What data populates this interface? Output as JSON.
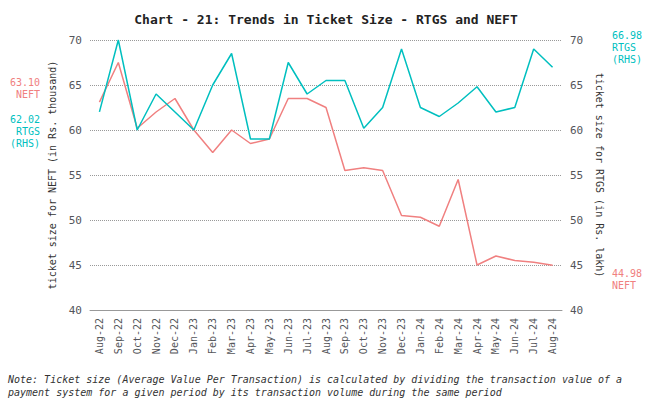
{
  "chart_data": {
    "type": "line",
    "title": "Chart - 21: Trends in Ticket Size - RTGS and NEFT",
    "categories": [
      "Aug-22",
      "Sep-22",
      "Oct-22",
      "Nov-22",
      "Dec-22",
      "Jan-23",
      "Feb-23",
      "Mar-23",
      "Apr-23",
      "May-23",
      "Jun-23",
      "Jul-23",
      "Aug-23",
      "Sep-23",
      "Oct-23",
      "Nov-23",
      "Dec-23",
      "Jan-24",
      "Feb-24",
      "Mar-24",
      "Apr-24",
      "May-24",
      "Jun-24",
      "Jul-24",
      "Aug-24"
    ],
    "series": [
      {
        "color": "#F08080",
        "values": [
          63.1,
          67.5,
          60.2,
          62.0,
          63.5,
          60.0,
          57.5,
          60.0,
          58.5,
          59.0,
          63.5,
          63.5,
          62.5,
          55.5,
          55.8,
          55.5,
          50.5,
          50.3,
          49.3,
          54.5,
          45.0,
          46.0,
          45.5,
          45.3,
          44.98
        ]
      },
      {
        "color": "#00BFBF",
        "axis": "y2",
        "values": [
          62.02,
          70.0,
          60.0,
          64.0,
          62.0,
          60.0,
          65.0,
          68.5,
          59.0,
          59.0,
          67.5,
          64.0,
          65.5,
          65.5,
          60.2,
          62.5,
          69.0,
          62.5,
          61.5,
          63.0,
          64.8,
          62.0,
          62.5,
          69.0,
          66.98
        ]
      }
    ],
    "ylabel": "ticket size for NEFT (in Rs. thousand)",
    "y2label": "ticket size for RTGS (in Rs. lakh)",
    "ylim": [
      40,
      70
    ],
    "yticks": [
      40,
      45,
      50,
      55,
      60,
      65,
      70
    ],
    "y2lim": [
      40,
      70
    ],
    "y2ticks": [
      40,
      45,
      50,
      55,
      60,
      65,
      70
    ],
    "grid": true,
    "annotations": [
      {
        "text": "63.10",
        "x": "Aug-22",
        "y": 63.1,
        "color": "#F08080"
      },
      {
        "text": "NEFT",
        "x": "Aug-22",
        "y": 63.1,
        "color": "#F08080"
      },
      {
        "text": "62.02",
        "x": "Aug-22",
        "y": 62.02,
        "axis": "y2",
        "color": "#00BFBF"
      },
      {
        "text": "RTGS\n(RHS)",
        "x": "Aug-22",
        "y": 62.02,
        "axis": "y2",
        "color": "#00BFBF"
      },
      {
        "text": "66.98",
        "x": "Aug-24",
        "y": 66.98,
        "axis": "y2",
        "color": "#00BFBF"
      },
      {
        "text": "RTGS\n(RHS)",
        "x": "Aug-24",
        "y": 66.98,
        "axis": "y2",
        "color": "#00BFBF"
      },
      {
        "text": "44.98",
        "x": "Aug-24",
        "y": 44.98,
        "color": "#F08080"
      },
      {
        "text": "NEFT",
        "x": "Aug-24",
        "y": 44.98,
        "color": "#F08080"
      }
    ],
    "note": "Note: Ticket size (Average Value Per Transaction) is calculated by dividing the transaction value of a payment system for a given period by its transaction volume during the same period"
  }
}
